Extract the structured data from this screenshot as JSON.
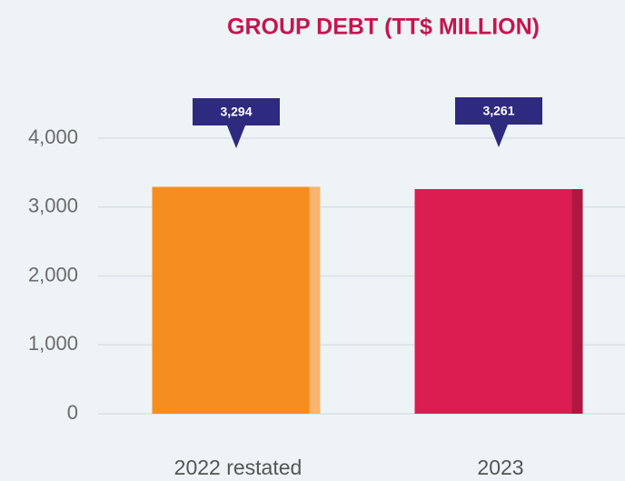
{
  "chart_data": {
    "type": "bar",
    "title": "GROUP DEBT (TT$ MILLION)",
    "categories": [
      "2022 restated",
      "2023"
    ],
    "values": [
      3294,
      3261
    ],
    "value_labels": [
      "3,294",
      "3,261"
    ],
    "colors": [
      "#f68d1f",
      "#db1d52"
    ],
    "ylim": [
      0,
      4000
    ],
    "yticks": [
      {
        "value": 0,
        "label": "0"
      },
      {
        "value": 1000,
        "label": "1,000"
      },
      {
        "value": 2000,
        "label": "2,000"
      },
      {
        "value": 3000,
        "label": "3,000"
      },
      {
        "value": 4000,
        "label": "4,000"
      }
    ],
    "grid": true
  }
}
